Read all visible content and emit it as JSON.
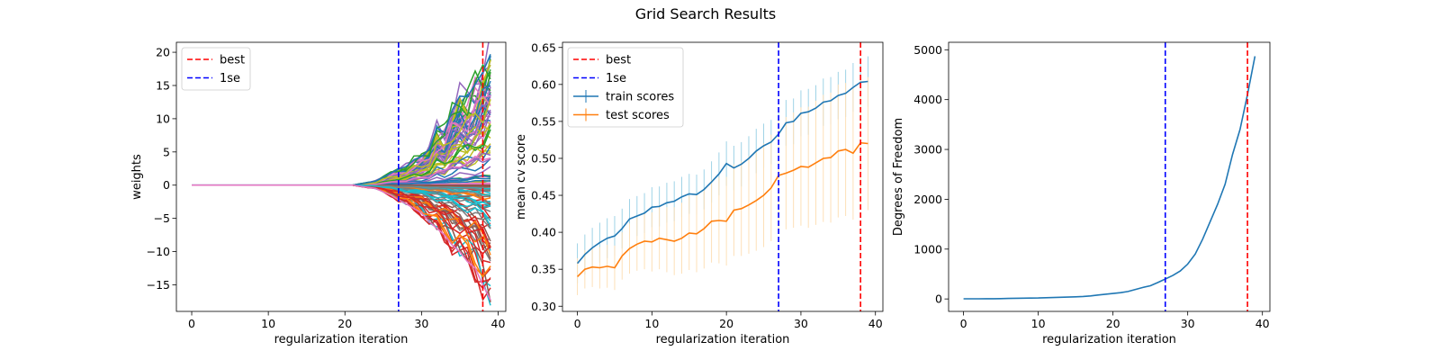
{
  "figure_title": "Grid Search Results",
  "colors": {
    "best": "#ff0000",
    "onese": "#0000ff",
    "train": "#1f77b4",
    "test": "#ff7f0e",
    "train_err": "#9fd3e6",
    "test_err": "#fde0b8",
    "tab10": [
      "#1f77b4",
      "#ff7f0e",
      "#2ca02c",
      "#d62728",
      "#9467bd",
      "#8c564b",
      "#e377c2",
      "#7f7f7f",
      "#bcbd22",
      "#17becf"
    ]
  },
  "chart_data": [
    {
      "type": "line",
      "xlabel": "regularization iteration",
      "ylabel": "weights",
      "xlim": [
        -2,
        41
      ],
      "ylim": [
        -19,
        21.5
      ],
      "xticks": [
        0,
        10,
        20,
        30,
        40
      ],
      "yticks": [
        -15,
        -10,
        -5,
        0,
        5,
        10,
        15,
        20
      ],
      "best": 38,
      "onese": 27,
      "legend": [
        "best",
        "1se"
      ],
      "legend_loc": "upper left",
      "weight_paths": {
        "onset_iteration": 21,
        "n_paths": 130,
        "max_envelope": [
          [
            21,
            0
          ],
          [
            24,
            0.6
          ],
          [
            26,
            1.8
          ],
          [
            27,
            2.4
          ],
          [
            28,
            2.8
          ],
          [
            29,
            3.8
          ],
          [
            30,
            4.3
          ],
          [
            31,
            5.4
          ],
          [
            32,
            8.6
          ],
          [
            33,
            7.9
          ],
          [
            34,
            11.3
          ],
          [
            35,
            13.4
          ],
          [
            36,
            13.3
          ],
          [
            37,
            15.2
          ],
          [
            38,
            17.0
          ],
          [
            39,
            19.7
          ]
        ],
        "min_envelope": [
          [
            21,
            0
          ],
          [
            24,
            -0.5
          ],
          [
            26,
            -1.5
          ],
          [
            27,
            -2.2
          ],
          [
            28,
            -2.8
          ],
          [
            29,
            -3.5
          ],
          [
            30,
            -4.2
          ],
          [
            31,
            -5.5
          ],
          [
            32,
            -6.5
          ],
          [
            33,
            -7.5
          ],
          [
            34,
            -9.0
          ],
          [
            35,
            -10.0
          ],
          [
            36,
            -11.5
          ],
          [
            37,
            -12.5
          ],
          [
            38,
            -15.0
          ],
          [
            39,
            -17.3
          ]
        ]
      }
    },
    {
      "type": "line",
      "xlabel": "regularization iteration",
      "ylabel": "mean cv score",
      "xlim": [
        -2,
        41
      ],
      "ylim": [
        0.293,
        0.657
      ],
      "xticks": [
        0,
        10,
        20,
        30,
        40
      ],
      "yticks": [
        0.3,
        0.35,
        0.4,
        0.45,
        0.5,
        0.55,
        0.6,
        0.65
      ],
      "best": 38,
      "onese": 27,
      "legend": [
        "best",
        "1se",
        "train scores",
        "test scores"
      ],
      "legend_loc": "upper left",
      "x": [
        0,
        1,
        2,
        3,
        4,
        5,
        6,
        7,
        8,
        9,
        10,
        11,
        12,
        13,
        14,
        15,
        16,
        17,
        18,
        19,
        20,
        21,
        22,
        23,
        24,
        25,
        26,
        27,
        28,
        29,
        30,
        31,
        32,
        33,
        34,
        35,
        36,
        37,
        38,
        39
      ],
      "series": [
        {
          "name": "train scores",
          "values": [
            0.358,
            0.37,
            0.379,
            0.386,
            0.392,
            0.395,
            0.405,
            0.418,
            0.422,
            0.426,
            0.434,
            0.435,
            0.44,
            0.442,
            0.448,
            0.452,
            0.451,
            0.458,
            0.468,
            0.479,
            0.493,
            0.487,
            0.492,
            0.5,
            0.51,
            0.517,
            0.522,
            0.533,
            0.548,
            0.55,
            0.561,
            0.563,
            0.568,
            0.576,
            0.578,
            0.585,
            0.588,
            0.596,
            0.603,
            0.604
          ],
          "err": [
            0.027,
            0.027,
            0.027,
            0.027,
            0.027,
            0.027,
            0.027,
            0.027,
            0.027,
            0.027,
            0.027,
            0.027,
            0.027,
            0.027,
            0.027,
            0.027,
            0.027,
            0.027,
            0.028,
            0.029,
            0.03,
            0.03,
            0.03,
            0.03,
            0.03,
            0.03,
            0.03,
            0.03,
            0.031,
            0.031,
            0.031,
            0.031,
            0.031,
            0.032,
            0.032,
            0.032,
            0.032,
            0.033,
            0.033,
            0.034
          ]
        },
        {
          "name": "test scores",
          "values": [
            0.34,
            0.35,
            0.353,
            0.352,
            0.354,
            0.352,
            0.368,
            0.378,
            0.384,
            0.388,
            0.387,
            0.392,
            0.39,
            0.388,
            0.392,
            0.399,
            0.398,
            0.405,
            0.415,
            0.416,
            0.415,
            0.43,
            0.432,
            0.437,
            0.443,
            0.45,
            0.46,
            0.477,
            0.48,
            0.484,
            0.489,
            0.488,
            0.494,
            0.5,
            0.501,
            0.51,
            0.512,
            0.507,
            0.521,
            0.52
          ],
          "err": [
            0.025,
            0.026,
            0.027,
            0.028,
            0.029,
            0.03,
            0.032,
            0.034,
            0.036,
            0.038,
            0.04,
            0.042,
            0.044,
            0.046,
            0.048,
            0.05,
            0.052,
            0.054,
            0.056,
            0.058,
            0.06,
            0.062,
            0.064,
            0.066,
            0.068,
            0.07,
            0.072,
            0.074,
            0.076,
            0.078,
            0.08,
            0.082,
            0.084,
            0.086,
            0.088,
            0.09,
            0.09,
            0.09,
            0.09,
            0.09
          ]
        }
      ]
    },
    {
      "type": "line",
      "xlabel": "regularization iteration",
      "ylabel": "Degrees of Freedom",
      "xlim": [
        -2,
        41
      ],
      "ylim": [
        -250,
        5150
      ],
      "xticks": [
        0,
        10,
        20,
        30,
        40
      ],
      "yticks": [
        0,
        1000,
        2000,
        3000,
        4000,
        5000
      ],
      "best": 38,
      "onese": 27,
      "x": [
        0,
        1,
        2,
        3,
        4,
        5,
        6,
        7,
        8,
        9,
        10,
        11,
        12,
        13,
        14,
        15,
        16,
        17,
        18,
        19,
        20,
        21,
        22,
        23,
        24,
        25,
        26,
        27,
        28,
        29,
        30,
        31,
        32,
        33,
        34,
        35,
        36,
        37,
        38,
        39
      ],
      "series": [
        {
          "name": "dof",
          "values": [
            2,
            3,
            3,
            4,
            5,
            7,
            10,
            13,
            15,
            17,
            20,
            24,
            28,
            33,
            38,
            43,
            50,
            60,
            78,
            95,
            110,
            125,
            150,
            190,
            230,
            265,
            330,
            400,
            470,
            560,
            700,
            900,
            1200,
            1550,
            1900,
            2300,
            2900,
            3400,
            4100,
            4870
          ]
        }
      ]
    }
  ]
}
